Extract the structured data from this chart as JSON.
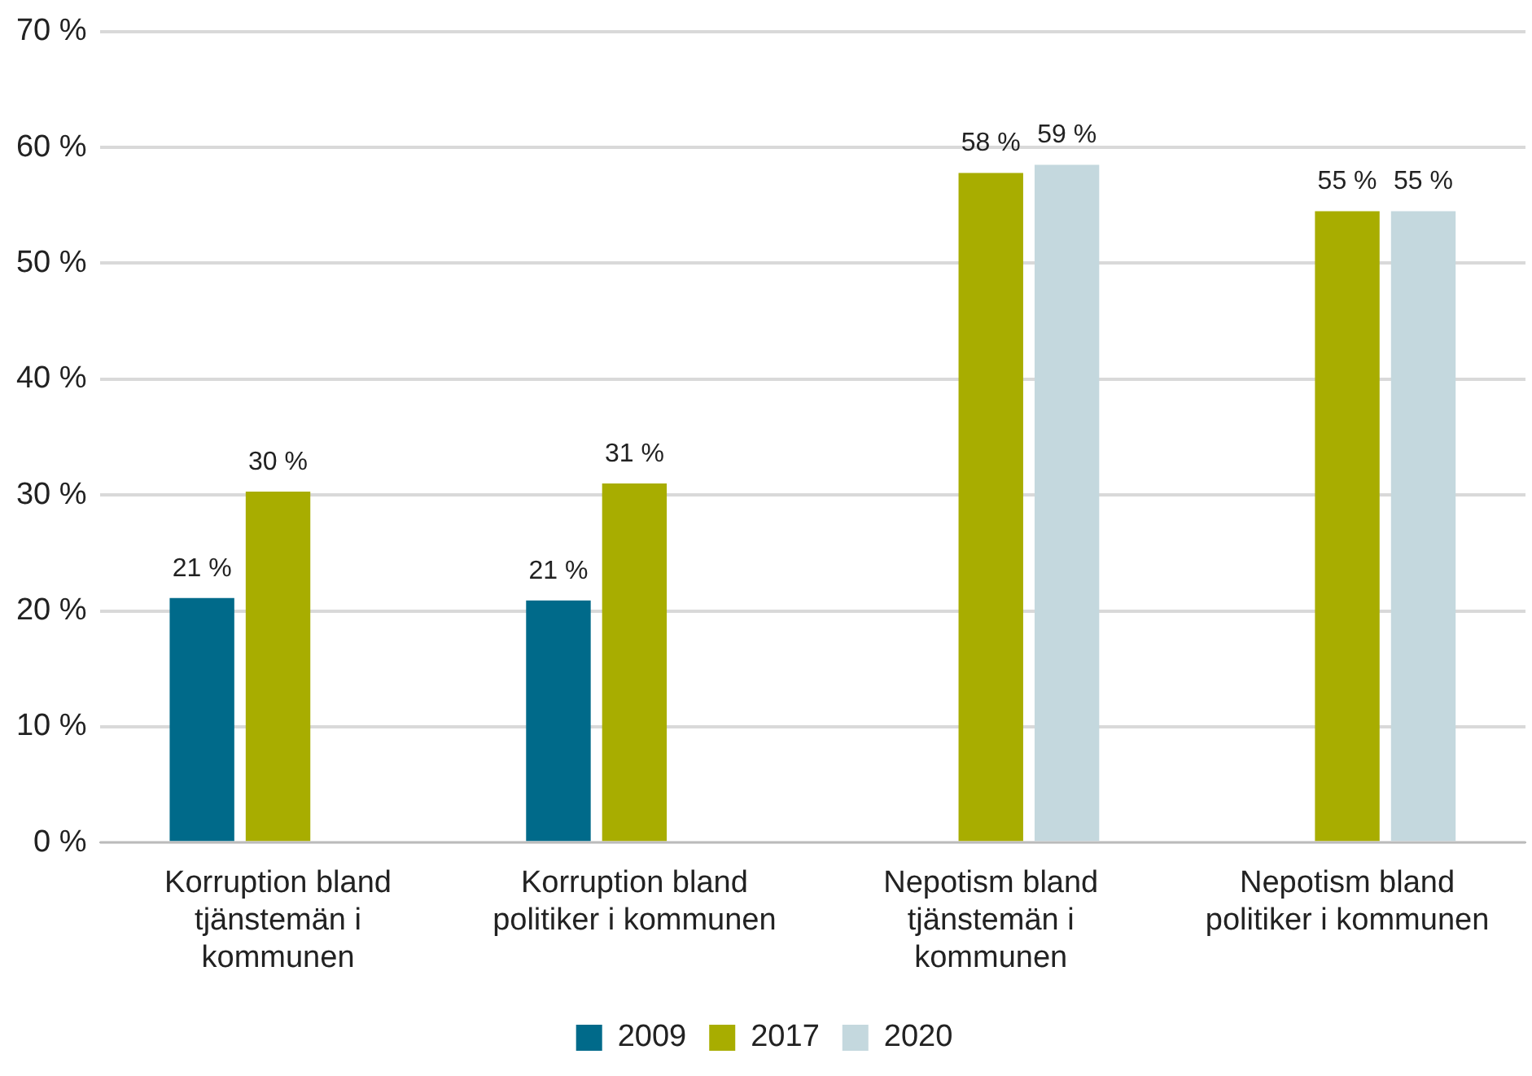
{
  "chart_data": {
    "type": "bar",
    "categories": [
      "Korruption bland tjänstemän i kommunen",
      "Korruption bland politiker i kommunen",
      "Nepotism bland tjänstemän i kommunen",
      "Nepotism bland politiker i kommunen"
    ],
    "series": [
      {
        "name": "2009",
        "color": "#006a8a",
        "values": [
          21.1,
          20.9,
          null,
          null
        ],
        "value_labels": [
          "21 %",
          "21 %",
          null,
          null
        ]
      },
      {
        "name": "2017",
        "color": "#a8ad00",
        "values": [
          30.3,
          31.0,
          57.8,
          54.5
        ],
        "value_labels": [
          "30 %",
          "31 %",
          "58 %",
          "55 %"
        ]
      },
      {
        "name": "2020",
        "color": "#c4d8de",
        "values": [
          null,
          null,
          58.5,
          54.5
        ],
        "value_labels": [
          null,
          null,
          "59 %",
          "55 %"
        ]
      }
    ],
    "ylim": [
      0,
      70
    ],
    "yticks": [
      {
        "value": 0,
        "label": "0 %"
      },
      {
        "value": 10,
        "label": "10 %"
      },
      {
        "value": 20,
        "label": "20 %"
      },
      {
        "value": 30,
        "label": "30 %"
      },
      {
        "value": 40,
        "label": "40 %"
      },
      {
        "value": 50,
        "label": "50 %"
      },
      {
        "value": 60,
        "label": "60 %"
      },
      {
        "value": 70,
        "label": "70 %"
      }
    ],
    "grid": "y",
    "legend": "bottom"
  }
}
